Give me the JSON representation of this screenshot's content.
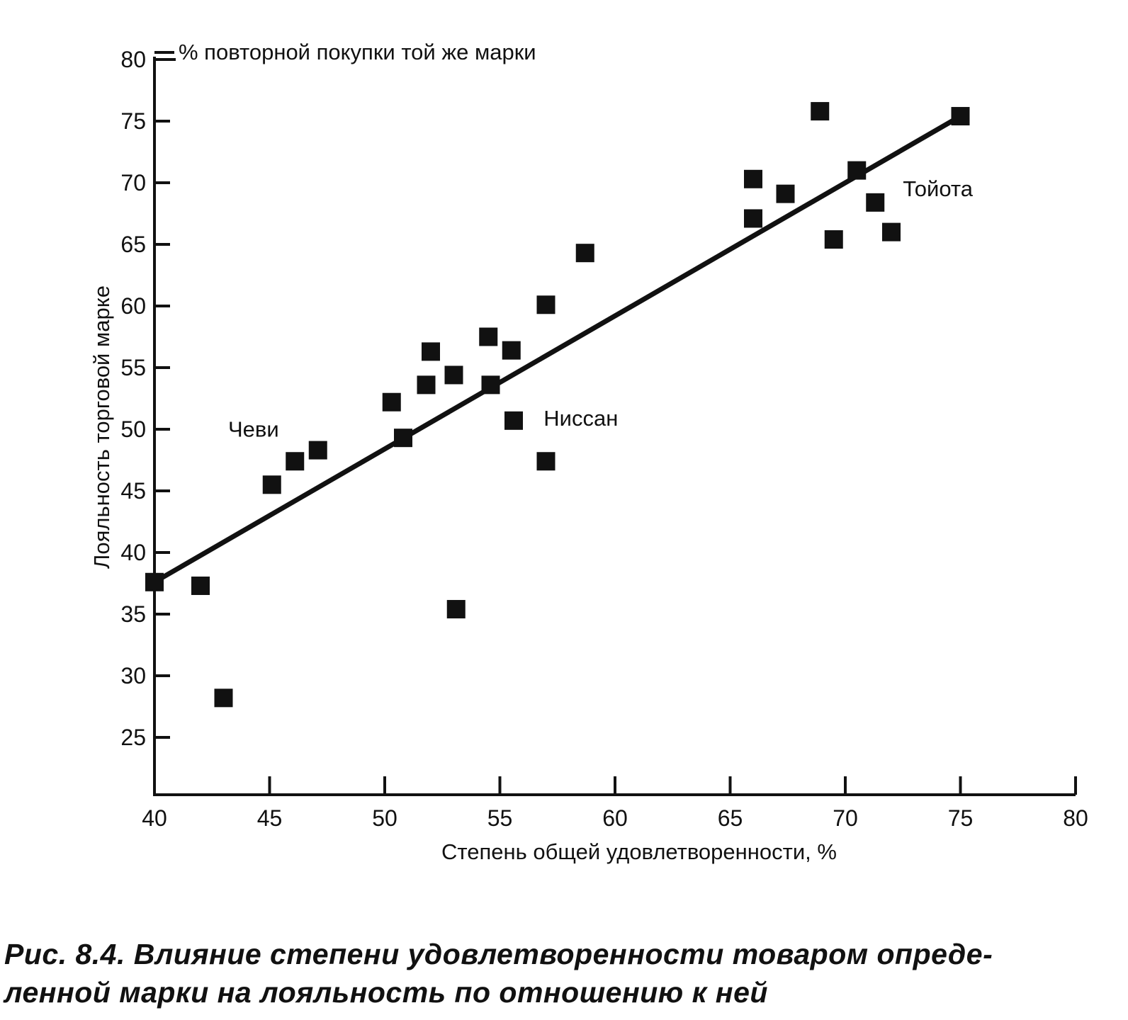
{
  "chart_data": {
    "type": "scatter",
    "xlabel": "Степень общей удовлетворенности, %",
    "ylabel": "Лояльность торговой марке",
    "ylabel_top": "% повторной покупки той же марки",
    "xlim": [
      40,
      80
    ],
    "ylim": [
      20,
      80
    ],
    "x_ticks": [
      40,
      45,
      50,
      55,
      60,
      65,
      70,
      75,
      80
    ],
    "y_ticks": [
      25,
      30,
      35,
      40,
      45,
      50,
      55,
      60,
      65,
      70,
      75,
      80
    ],
    "grid": false,
    "legend": "none",
    "points": [
      {
        "x": 40.0,
        "y": 37.6
      },
      {
        "x": 42.0,
        "y": 37.3
      },
      {
        "x": 43.0,
        "y": 28.2
      },
      {
        "x": 45.1,
        "y": 45.5
      },
      {
        "x": 46.1,
        "y": 47.4
      },
      {
        "x": 47.1,
        "y": 48.3
      },
      {
        "x": 50.3,
        "y": 52.2
      },
      {
        "x": 50.8,
        "y": 49.3
      },
      {
        "x": 51.8,
        "y": 53.6
      },
      {
        "x": 52.0,
        "y": 56.3
      },
      {
        "x": 53.0,
        "y": 54.4
      },
      {
        "x": 53.1,
        "y": 35.4
      },
      {
        "x": 54.5,
        "y": 57.5
      },
      {
        "x": 54.6,
        "y": 53.6
      },
      {
        "x": 55.5,
        "y": 56.4
      },
      {
        "x": 55.6,
        "y": 50.7
      },
      {
        "x": 57.0,
        "y": 60.1
      },
      {
        "x": 57.0,
        "y": 47.4
      },
      {
        "x": 58.7,
        "y": 64.3
      },
      {
        "x": 66.0,
        "y": 70.3
      },
      {
        "x": 66.0,
        "y": 67.1
      },
      {
        "x": 67.4,
        "y": 69.1
      },
      {
        "x": 68.9,
        "y": 75.8
      },
      {
        "x": 69.5,
        "y": 65.4
      },
      {
        "x": 70.5,
        "y": 71.0
      },
      {
        "x": 71.3,
        "y": 68.4
      },
      {
        "x": 72.0,
        "y": 66.0
      },
      {
        "x": 75.0,
        "y": 75.4
      }
    ],
    "trend_line": {
      "x": [
        40,
        75
      ],
      "y": [
        37.6,
        75.4
      ]
    },
    "annotations": [
      {
        "text": "Чеви",
        "x": 43.2,
        "y": 49.4
      },
      {
        "text": "Ниссан",
        "x": 56.9,
        "y": 50.3
      },
      {
        "text": "Тойота",
        "x": 72.5,
        "y": 68.9
      }
    ],
    "colors": {
      "marker": "#111111",
      "line": "#111111",
      "axis": "#111111"
    }
  },
  "caption": {
    "line1": "Рис. 8.4. Влияние степени удовлетворенности товаром опреде-",
    "line2": "ленной марки на лояльность по отношению к ней"
  }
}
